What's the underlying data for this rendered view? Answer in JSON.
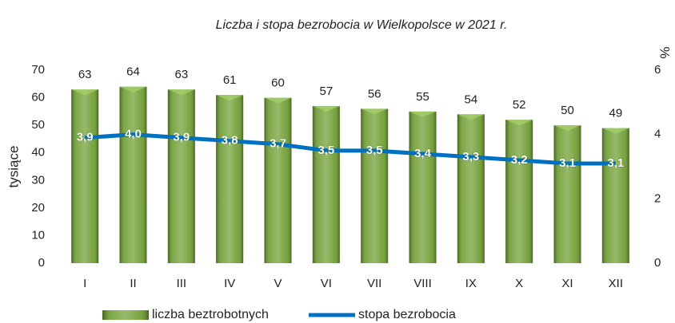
{
  "chart_data": {
    "type": "bar",
    "title": "Liczba i stopa bezrobocia w Wielkopolsce w 2021 r.",
    "y_label": "tysiące",
    "y2_label": "%",
    "categories": [
      "I",
      "II",
      "III",
      "IV",
      "V",
      "VI",
      "VII",
      "VIII",
      "IX",
      "X",
      "XI",
      "XII"
    ],
    "series": [
      {
        "name": "liczba beztrobotnych",
        "type": "bar",
        "color": "#6b9b2c",
        "values": [
          63,
          64,
          63,
          61,
          60,
          57,
          56,
          55,
          54,
          52,
          50,
          49
        ]
      },
      {
        "name": "stopa bezrobocia",
        "type": "line",
        "axis": "y2",
        "color": "#0070c0",
        "values": [
          3.9,
          4.0,
          3.9,
          3.8,
          3.7,
          3.5,
          3.5,
          3.4,
          3.3,
          3.2,
          3.1,
          3.1
        ],
        "value_labels": [
          "3,9",
          "4,0",
          "3,9",
          "3,8",
          "3,7",
          "3,5",
          "3,5",
          "3,4",
          "3,3",
          "3,2",
          "3,1",
          "3,1"
        ]
      }
    ],
    "ylim": [
      0,
      70
    ],
    "yticks": [
      0,
      10,
      20,
      30,
      40,
      50,
      60,
      70
    ],
    "y2lim": [
      0,
      6
    ],
    "y2ticks": [
      0,
      2,
      4,
      6
    ],
    "legend": "bottom"
  }
}
